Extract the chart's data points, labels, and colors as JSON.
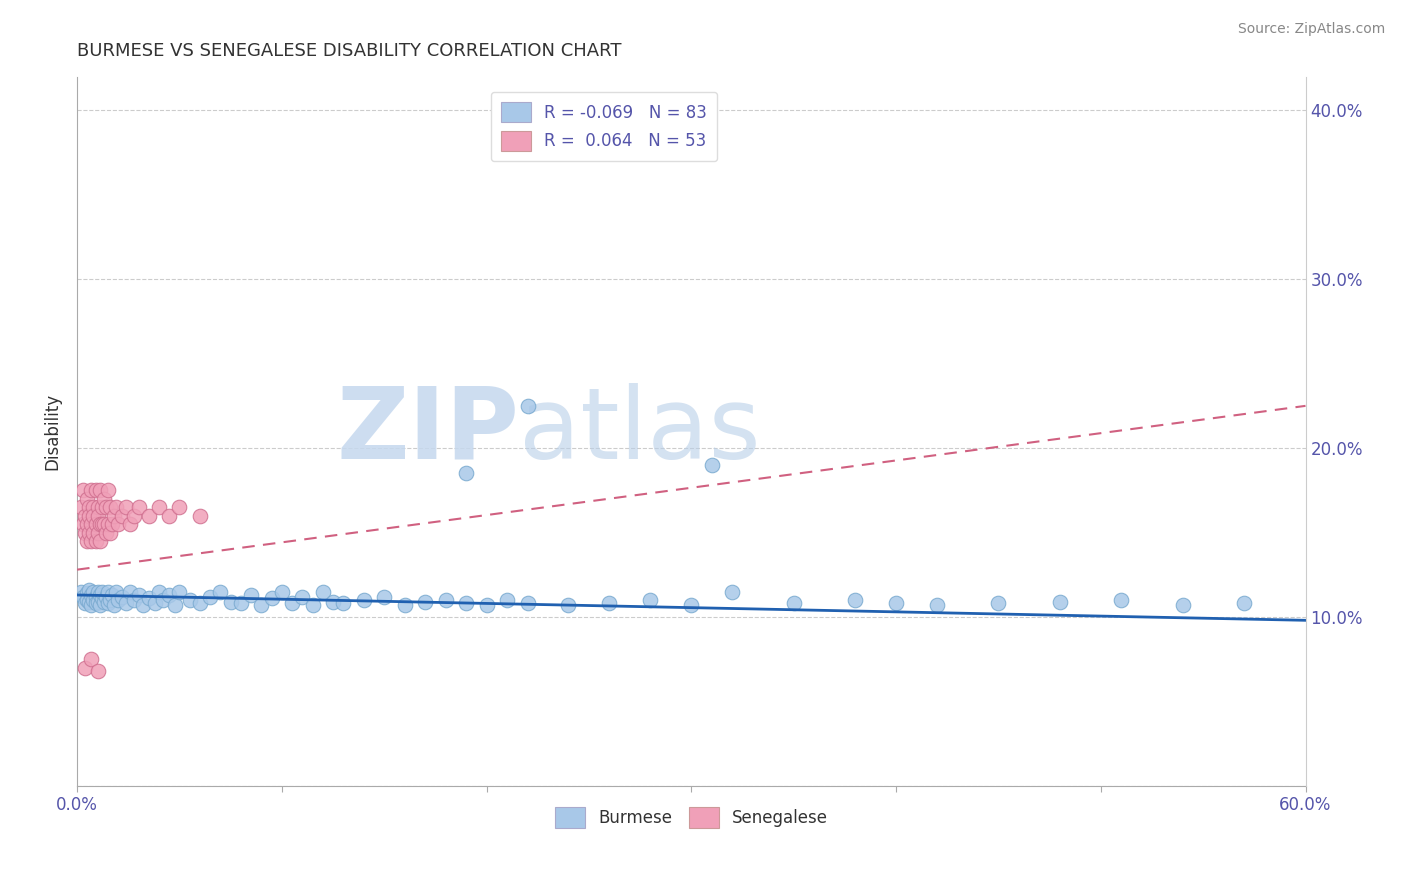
{
  "title": "BURMESE VS SENEGALESE DISABILITY CORRELATION CHART",
  "source": "Source: ZipAtlas.com",
  "ylabel": "Disability",
  "xlim": [
    0.0,
    0.6
  ],
  "ylim": [
    0.0,
    0.42
  ],
  "x_ticks": [
    0.0,
    0.1,
    0.2,
    0.3,
    0.4,
    0.5,
    0.6
  ],
  "x_tick_labels": [
    "0.0%",
    "",
    "",
    "",
    "",
    "",
    "60.0%"
  ],
  "y_ticks": [
    0.0,
    0.1,
    0.2,
    0.3,
    0.4
  ],
  "y_tick_labels_right": [
    "",
    "10.0%",
    "20.0%",
    "30.0%",
    "40.0%"
  ],
  "burmese_color": "#a8c8e8",
  "senegalese_color": "#f0a0b8",
  "burmese_line_color": "#2060b0",
  "senegalese_line_color": "#d06080",
  "watermark_zip": "ZIP",
  "watermark_atlas": "atlas",
  "legend_line1": "R = -0.069   N = 83",
  "legend_line2": "R =  0.064   N = 53",
  "burmese_trend": [
    0.0,
    0.6,
    0.113,
    0.098
  ],
  "senegalese_trend": [
    0.0,
    0.6,
    0.128,
    0.225
  ],
  "burmese_x": [
    0.002,
    0.003,
    0.004,
    0.005,
    0.005,
    0.006,
    0.006,
    0.007,
    0.007,
    0.008,
    0.008,
    0.009,
    0.009,
    0.01,
    0.01,
    0.011,
    0.011,
    0.012,
    0.012,
    0.013,
    0.014,
    0.015,
    0.015,
    0.016,
    0.017,
    0.018,
    0.019,
    0.02,
    0.022,
    0.024,
    0.026,
    0.028,
    0.03,
    0.032,
    0.035,
    0.038,
    0.04,
    0.042,
    0.045,
    0.048,
    0.05,
    0.055,
    0.06,
    0.065,
    0.07,
    0.075,
    0.08,
    0.085,
    0.09,
    0.095,
    0.1,
    0.105,
    0.11,
    0.115,
    0.12,
    0.125,
    0.13,
    0.14,
    0.15,
    0.16,
    0.17,
    0.18,
    0.19,
    0.2,
    0.21,
    0.22,
    0.24,
    0.26,
    0.28,
    0.3,
    0.32,
    0.35,
    0.38,
    0.4,
    0.42,
    0.45,
    0.48,
    0.51,
    0.54,
    0.57,
    0.31,
    0.22,
    0.19
  ],
  "burmese_y": [
    0.115,
    0.112,
    0.108,
    0.114,
    0.11,
    0.116,
    0.109,
    0.113,
    0.107,
    0.115,
    0.11,
    0.112,
    0.108,
    0.115,
    0.109,
    0.113,
    0.107,
    0.111,
    0.115,
    0.109,
    0.112,
    0.108,
    0.115,
    0.11,
    0.113,
    0.107,
    0.115,
    0.11,
    0.112,
    0.108,
    0.115,
    0.11,
    0.113,
    0.107,
    0.111,
    0.108,
    0.115,
    0.11,
    0.113,
    0.107,
    0.115,
    0.11,
    0.108,
    0.112,
    0.115,
    0.109,
    0.108,
    0.113,
    0.107,
    0.111,
    0.115,
    0.108,
    0.112,
    0.107,
    0.115,
    0.109,
    0.108,
    0.11,
    0.112,
    0.107,
    0.109,
    0.11,
    0.108,
    0.107,
    0.11,
    0.108,
    0.107,
    0.108,
    0.11,
    0.107,
    0.115,
    0.108,
    0.11,
    0.108,
    0.107,
    0.108,
    0.109,
    0.11,
    0.107,
    0.108,
    0.19,
    0.225,
    0.185
  ],
  "senegalese_x": [
    0.002,
    0.003,
    0.003,
    0.004,
    0.004,
    0.005,
    0.005,
    0.005,
    0.006,
    0.006,
    0.006,
    0.007,
    0.007,
    0.007,
    0.008,
    0.008,
    0.008,
    0.009,
    0.009,
    0.009,
    0.01,
    0.01,
    0.01,
    0.011,
    0.011,
    0.011,
    0.012,
    0.012,
    0.013,
    0.013,
    0.014,
    0.014,
    0.015,
    0.015,
    0.016,
    0.016,
    0.017,
    0.018,
    0.019,
    0.02,
    0.022,
    0.024,
    0.026,
    0.028,
    0.03,
    0.035,
    0.04,
    0.045,
    0.05,
    0.06,
    0.004,
    0.007,
    0.01
  ],
  "senegalese_y": [
    0.165,
    0.175,
    0.155,
    0.15,
    0.16,
    0.17,
    0.155,
    0.145,
    0.165,
    0.15,
    0.16,
    0.175,
    0.155,
    0.145,
    0.165,
    0.15,
    0.16,
    0.175,
    0.155,
    0.145,
    0.165,
    0.15,
    0.16,
    0.175,
    0.155,
    0.145,
    0.165,
    0.155,
    0.17,
    0.155,
    0.165,
    0.15,
    0.175,
    0.155,
    0.165,
    0.15,
    0.155,
    0.16,
    0.165,
    0.155,
    0.16,
    0.165,
    0.155,
    0.16,
    0.165,
    0.16,
    0.165,
    0.16,
    0.165,
    0.16,
    0.07,
    0.075,
    0.068
  ]
}
